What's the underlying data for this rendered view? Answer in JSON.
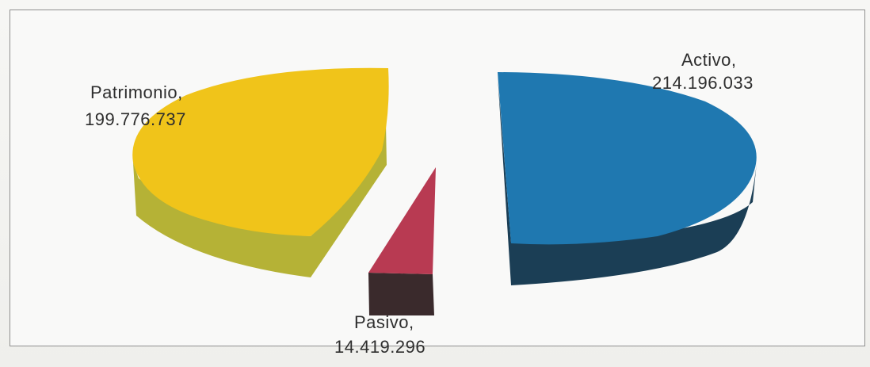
{
  "chart_data": {
    "type": "pie",
    "style": "3d-exploded",
    "categories": [
      "Activo",
      "Pasivo",
      "Patrimonio"
    ],
    "values": [
      214196033,
      14419296,
      199776737
    ],
    "value_labels": [
      "214.196.033",
      "14.419.296",
      "199.776.737"
    ],
    "label_names": [
      "Activo,",
      "Pasivo,",
      "Patrimonio,"
    ],
    "colors": {
      "Activo": {
        "top": "#1f78b0",
        "side": "#1b3e55"
      },
      "Pasivo": {
        "top": "#b83a52",
        "side": "#3a2a2c"
      },
      "Patrimonio": {
        "top": "#f0c41a",
        "side": "#b5b236"
      }
    },
    "title": "",
    "legend": "none",
    "grid": false
  }
}
